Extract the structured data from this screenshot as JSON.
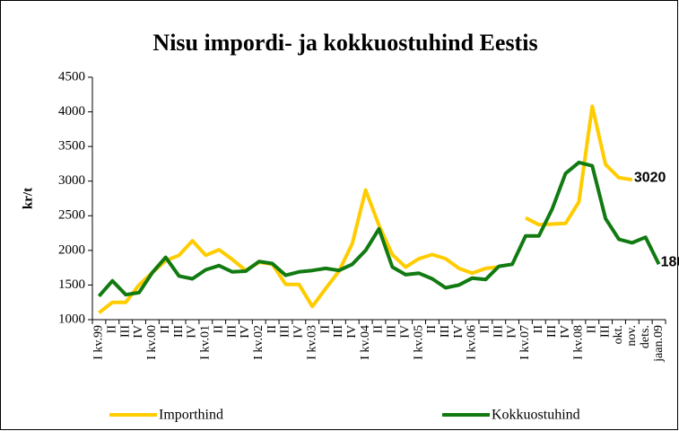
{
  "chart_data": {
    "type": "line",
    "title": "Nisu impordi- ja kokkuostuhind Eestis",
    "y_label": "kr/t",
    "categories": [
      "I kv.99",
      "II",
      "III",
      "IV",
      "I kv.00",
      "II",
      "III",
      "IV",
      "I kv.01",
      "II",
      "III",
      "IV",
      "I kv.02",
      "II",
      "III",
      "IV",
      "I kv.03",
      "II",
      "III",
      "IV",
      "I kv.04",
      "II",
      "III",
      "IV",
      "I kv.05",
      "II",
      "III",
      "IV",
      "I kv.06",
      "II",
      "III",
      "IV",
      "I kv.07",
      "II",
      "III",
      "IV",
      "I kv.08",
      "II",
      "III",
      "okt.",
      "nov.",
      "dets.",
      "jaan.09"
    ],
    "series": [
      {
        "name": "Importhind",
        "color": "#ffcc00",
        "values": [
          1100,
          1250,
          1250,
          1500,
          1680,
          1850,
          1930,
          2140,
          1930,
          2010,
          1870,
          1710,
          1830,
          1800,
          1510,
          1510,
          1190,
          1450,
          1700,
          2100,
          2870,
          2360,
          1940,
          1760,
          1880,
          1940,
          1880,
          1740,
          1670,
          1740,
          1760,
          null,
          2470,
          2370,
          2380,
          2390,
          2700,
          4080,
          3240,
          3050,
          3020,
          null,
          null
        ]
      },
      {
        "name": "Kokkuostuhind",
        "color": "#117a11",
        "values": [
          1340,
          1560,
          1360,
          1390,
          1680,
          1900,
          1630,
          1590,
          1720,
          1780,
          1690,
          1700,
          1840,
          1810,
          1640,
          1690,
          1710,
          1740,
          1710,
          1800,
          2000,
          2310,
          1760,
          1650,
          1670,
          1590,
          1460,
          1500,
          1600,
          1580,
          1770,
          1800,
          2210,
          2210,
          2600,
          3110,
          3270,
          3220,
          2460,
          2160,
          2110,
          2190,
          1800
        ]
      }
    ],
    "ylim": [
      1000,
      4500
    ],
    "yticks": [
      1000,
      1500,
      2000,
      2500,
      3000,
      3500,
      4000,
      4500
    ],
    "grid": false
  }
}
